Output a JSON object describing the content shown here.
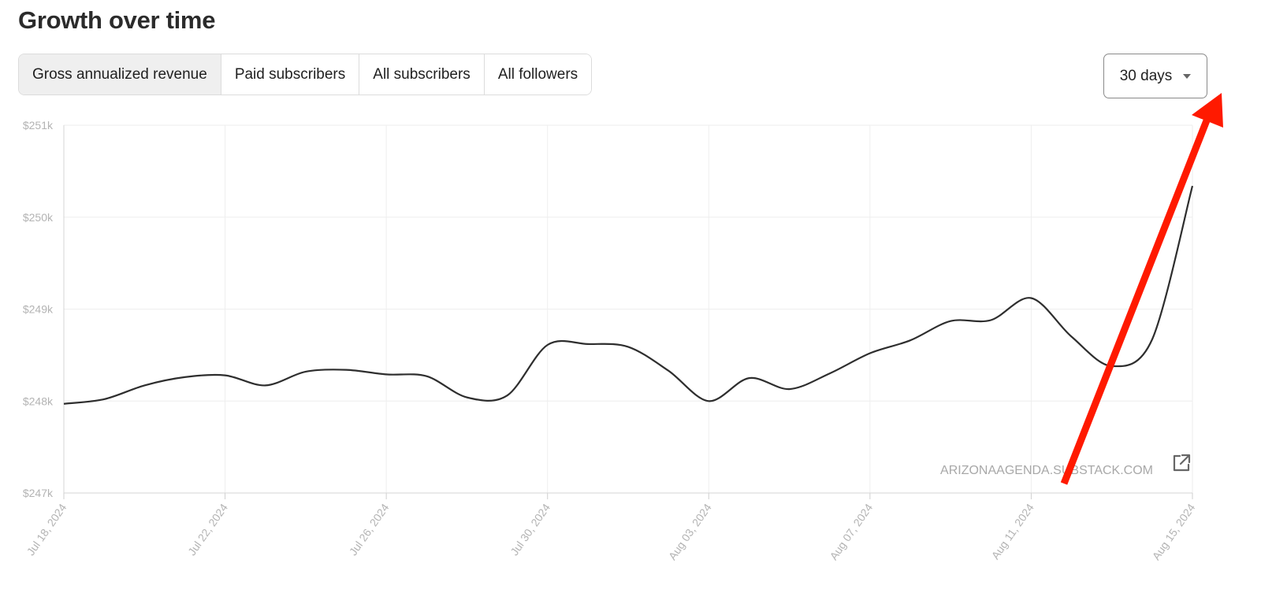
{
  "page": {
    "title": "Growth over time",
    "tabs": [
      {
        "label": "Gross annualized revenue",
        "active": true
      },
      {
        "label": "Paid subscribers",
        "active": false
      },
      {
        "label": "All subscribers",
        "active": false
      },
      {
        "label": "All followers",
        "active": false
      }
    ],
    "range_select": {
      "label": "30 days",
      "icon": "caret-down-icon"
    },
    "watermark": "ARIZONAAGENDA.SUBSTACK.COM",
    "external_link_icon": "external-link-icon",
    "annotation": {
      "type": "arrow",
      "color": "#ff1a00",
      "points_to": "range_select"
    }
  },
  "chart_data": {
    "type": "line",
    "title": "",
    "xlabel": "",
    "ylabel": "",
    "x_start": "2024-07-18",
    "x_end": "2024-08-15",
    "xticks": [
      "Jul 18, 2024",
      "Jul 22, 2024",
      "Jul 26, 2024",
      "Jul 30, 2024",
      "Aug 03, 2024",
      "Aug 07, 2024",
      "Aug 11, 2024",
      "Aug 15, 2024"
    ],
    "yticks": [
      "$247k",
      "$248k",
      "$249k",
      "$250k",
      "$251k"
    ],
    "ylim": [
      247000,
      251000
    ],
    "grid": true,
    "line_color": "#2e2e2e",
    "series": [
      {
        "name": "",
        "x": [
          "2024-07-18",
          "2024-07-19",
          "2024-07-20",
          "2024-07-21",
          "2024-07-22",
          "2024-07-23",
          "2024-07-24",
          "2024-07-25",
          "2024-07-26",
          "2024-07-27",
          "2024-07-28",
          "2024-07-29",
          "2024-07-30",
          "2024-07-31",
          "2024-08-01",
          "2024-08-02",
          "2024-08-03",
          "2024-08-04",
          "2024-08-05",
          "2024-08-06",
          "2024-08-07",
          "2024-08-08",
          "2024-08-09",
          "2024-08-10",
          "2024-08-11",
          "2024-08-12",
          "2024-08-13",
          "2024-08-14",
          "2024-08-15"
        ],
        "values": [
          247970,
          248020,
          248170,
          248260,
          248280,
          248170,
          248320,
          248340,
          248290,
          248270,
          248040,
          248060,
          248610,
          248620,
          248590,
          248330,
          248000,
          248250,
          248130,
          248300,
          248520,
          248660,
          248870,
          248880,
          249120,
          248700,
          248380,
          248670,
          250340
        ]
      }
    ]
  }
}
